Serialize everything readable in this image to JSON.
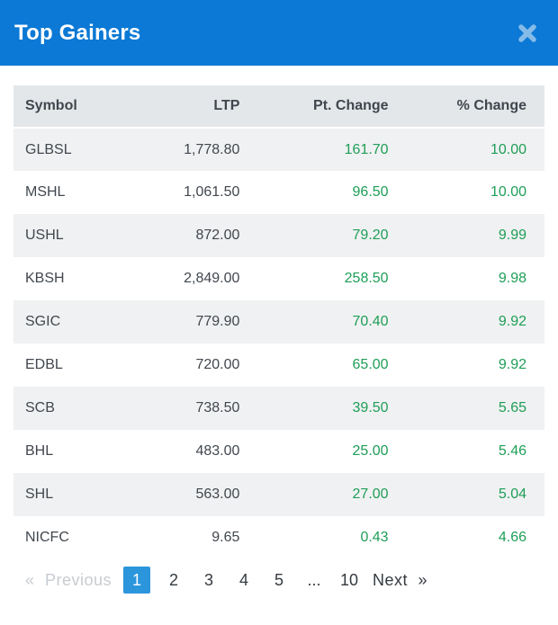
{
  "modal": {
    "title": "Top Gainers",
    "close_icon": "x-close"
  },
  "colors": {
    "header_blue": "#0b79d5",
    "active_page_blue": "#2b96dc",
    "positive_green": "#1e9e57",
    "close_icon_blue": "#85bbe8"
  },
  "table": {
    "columns": [
      "Symbol",
      "LTP",
      "Pt. Change",
      "% Change"
    ],
    "rows": [
      {
        "symbol": "GLBSL",
        "ltp": "1,778.80",
        "pt_change": "161.70",
        "pct_change": "10.00"
      },
      {
        "symbol": "MSHL",
        "ltp": "1,061.50",
        "pt_change": "96.50",
        "pct_change": "10.00"
      },
      {
        "symbol": "USHL",
        "ltp": "872.00",
        "pt_change": "79.20",
        "pct_change": "9.99"
      },
      {
        "symbol": "KBSH",
        "ltp": "2,849.00",
        "pt_change": "258.50",
        "pct_change": "9.98"
      },
      {
        "symbol": "SGIC",
        "ltp": "779.90",
        "pt_change": "70.40",
        "pct_change": "9.92"
      },
      {
        "symbol": "EDBL",
        "ltp": "720.00",
        "pt_change": "65.00",
        "pct_change": "9.92"
      },
      {
        "symbol": "SCB",
        "ltp": "738.50",
        "pt_change": "39.50",
        "pct_change": "5.65"
      },
      {
        "symbol": "BHL",
        "ltp": "483.00",
        "pt_change": "25.00",
        "pct_change": "5.46"
      },
      {
        "symbol": "SHL",
        "ltp": "563.00",
        "pt_change": "27.00",
        "pct_change": "5.04"
      },
      {
        "symbol": "NICFC",
        "ltp": "9.65",
        "pt_change": "0.43",
        "pct_change": "4.66"
      }
    ]
  },
  "pagination": {
    "prev_label": "« Previous",
    "prev_disabled": true,
    "pages": [
      "1",
      "2",
      "3",
      "4",
      "5",
      "...",
      "10"
    ],
    "active_page": "1",
    "next_label": "Next »"
  }
}
